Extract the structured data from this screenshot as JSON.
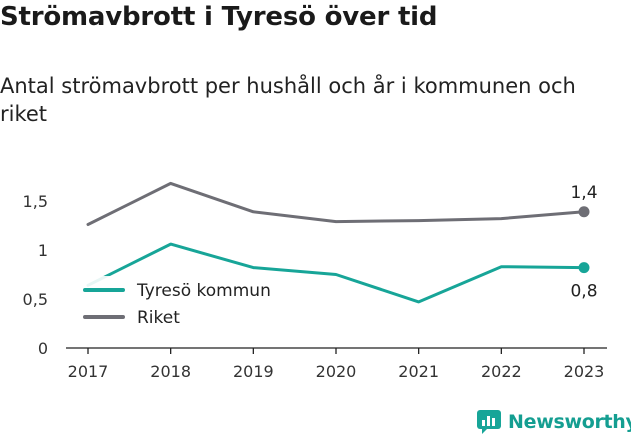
{
  "header": {
    "title": "Strömavbrott i Tyresö över tid",
    "subtitle": "Antal strömavbrott per hushåll och år i kommunen och riket"
  },
  "brand": {
    "name": "Newsworthy",
    "icon": "newsworthy-logo-icon",
    "color": "#149e91"
  },
  "chart_data": {
    "type": "line",
    "title": "",
    "xlabel": "",
    "ylabel": "",
    "categories": [
      "2017",
      "2018",
      "2019",
      "2020",
      "2021",
      "2022",
      "2023"
    ],
    "y_ticks": [
      "0",
      "0,5",
      "1",
      "1,5"
    ],
    "ylim": [
      0,
      1.75
    ],
    "grid": false,
    "legend_position": "bottom-left",
    "series": [
      {
        "name": "Tyresö kommun",
        "color": "#17a598",
        "values": [
          0.64,
          1.06,
          0.82,
          0.75,
          0.47,
          0.83,
          0.82
        ],
        "end_label": "0,8"
      },
      {
        "name": "Riket",
        "color": "#6e6e75",
        "values": [
          1.26,
          1.68,
          1.39,
          1.29,
          1.3,
          1.32,
          1.39
        ],
        "end_label": "1,4"
      }
    ]
  }
}
